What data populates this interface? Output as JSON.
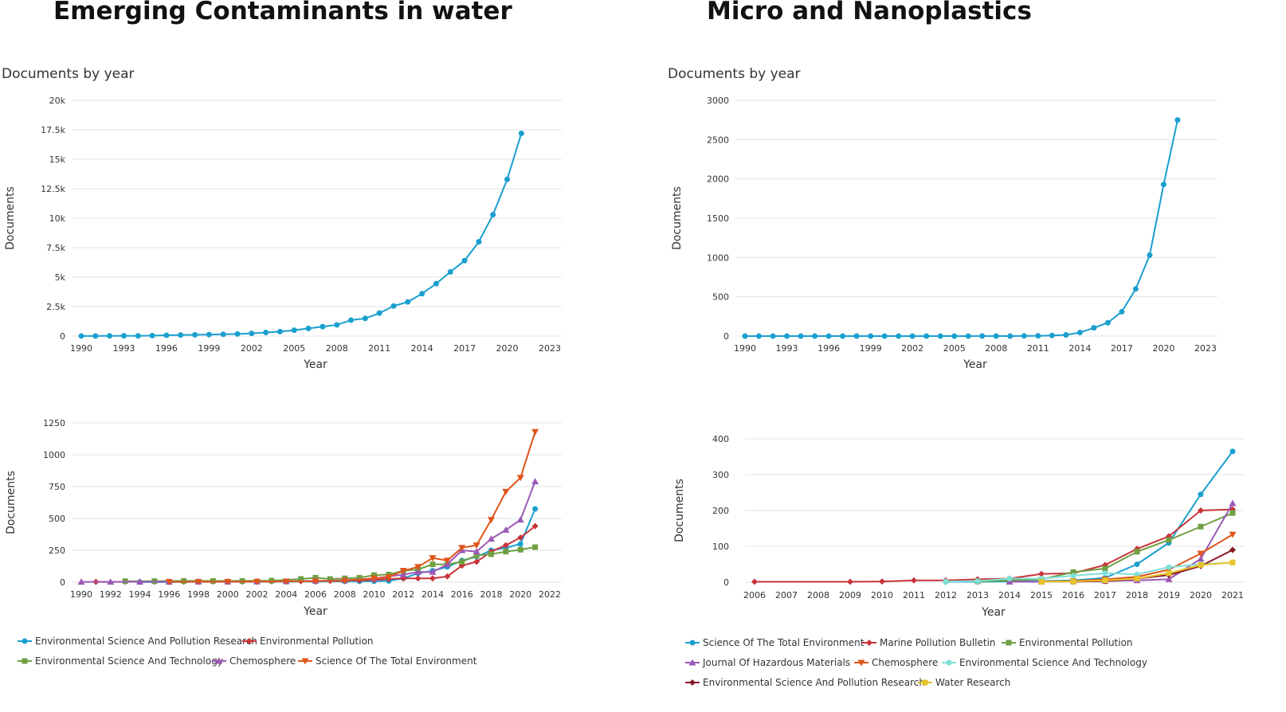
{
  "panels": {
    "left_title": "Emerging Contaminants in water",
    "right_title": "Micro and Nanoplastics",
    "left_subtitle": "Documents by year",
    "right_subtitle": "Documents by year"
  },
  "colors": {
    "main_line": "#1a9fcf",
    "grid": "#e3e3e3"
  },
  "chart_data": [
    {
      "type": "line",
      "title": "Documents by year",
      "xlabel": "Year",
      "ylabel": "Documents",
      "xlim": [
        1990,
        2023
      ],
      "ylim": [
        0,
        20000
      ],
      "xticks": [
        "1990",
        "1993",
        "1996",
        "1999",
        "2002",
        "2005",
        "2008",
        "2011",
        "2014",
        "2017",
        "2020",
        "2023"
      ],
      "yticks": [
        "0",
        "2.5k",
        "5k",
        "7.5k",
        "10k",
        "12.5k",
        "15k",
        "17.5k",
        "20k"
      ],
      "yticks_values": [
        0,
        2500,
        5000,
        7500,
        10000,
        12500,
        15000,
        17500,
        20000
      ],
      "grid": true,
      "series": [
        {
          "color": "#1a9fcf",
          "x": [
            1990,
            1991,
            1992,
            1993,
            1994,
            1995,
            1996,
            1997,
            1998,
            1999,
            2000,
            2001,
            2002,
            2003,
            2004,
            2005,
            2006,
            2007,
            2008,
            2009,
            2010,
            2011,
            2012,
            2013,
            2014,
            2015,
            2016,
            2017,
            2018,
            2019,
            2020,
            2021
          ],
          "values": [
            5,
            10,
            20,
            25,
            15,
            40,
            70,
            90,
            110,
            130,
            150,
            180,
            230,
            300,
            380,
            500,
            650,
            800,
            950,
            1350,
            1500,
            1950,
            2550,
            2900,
            3600,
            4450,
            5450,
            6400,
            8000,
            10300,
            13300,
            17200
          ]
        }
      ]
    },
    {
      "type": "line",
      "xlabel": "Year",
      "ylabel": "Documents",
      "xlim": [
        1990,
        2022
      ],
      "ylim": [
        0,
        1250
      ],
      "xticks": [
        "1990",
        "1992",
        "1994",
        "1996",
        "1998",
        "2000",
        "2002",
        "2004",
        "2006",
        "2008",
        "2010",
        "2012",
        "2014",
        "2016",
        "2018",
        "2020",
        "2022"
      ],
      "yticks": [
        "0",
        "250",
        "500",
        "750",
        "1000",
        "1250"
      ],
      "yticks_values": [
        0,
        250,
        500,
        750,
        1000,
        1250
      ],
      "grid": true,
      "legend": "bottom",
      "series": [
        {
          "name": "Environmental Science And Pollution Research",
          "color": "#1a9fcf",
          "marker": "circle",
          "x": [
            1994,
            1996,
            1998,
            2000,
            2002,
            2004,
            2006,
            2008,
            2009,
            2010,
            2011,
            2012,
            2013,
            2014,
            2015,
            2016,
            2017,
            2018,
            2019,
            2020,
            2021
          ],
          "values": [
            1,
            1,
            2,
            2,
            3,
            4,
            5,
            6,
            7,
            8,
            10,
            30,
            70,
            90,
            120,
            170,
            200,
            250,
            270,
            300,
            575
          ]
        },
        {
          "name": "Environmental Pollution",
          "color": "#c9343a",
          "marker": "diamond",
          "x": [
            1991,
            1993,
            1995,
            1997,
            1999,
            2001,
            2003,
            2005,
            2007,
            2008,
            2009,
            2010,
            2011,
            2012,
            2013,
            2014,
            2015,
            2016,
            2017,
            2018,
            2019,
            2020,
            2021
          ],
          "values": [
            2,
            3,
            4,
            4,
            5,
            5,
            6,
            8,
            10,
            12,
            15,
            18,
            25,
            30,
            30,
            30,
            45,
            130,
            160,
            240,
            290,
            350,
            440
          ]
        },
        {
          "name": "Environmental Science And Technology",
          "color": "#6fa043",
          "marker": "square",
          "x": [
            1993,
            1995,
            1997,
            1999,
            2001,
            2003,
            2005,
            2006,
            2007,
            2008,
            2009,
            2010,
            2011,
            2012,
            2013,
            2014,
            2015,
            2016,
            2017,
            2018,
            2019,
            2020,
            2021
          ],
          "values": [
            8,
            8,
            10,
            10,
            10,
            12,
            25,
            35,
            25,
            30,
            35,
            55,
            60,
            90,
            100,
            140,
            140,
            160,
            210,
            220,
            240,
            255,
            275
          ]
        },
        {
          "name": "Chemosphere",
          "color": "#9b59b6",
          "marker": "triangle",
          "x": [
            1990,
            1992,
            1994,
            1996,
            1998,
            2000,
            2002,
            2004,
            2006,
            2008,
            2010,
            2012,
            2013,
            2014,
            2015,
            2016,
            2017,
            2018,
            2019,
            2020,
            2021
          ],
          "values": [
            2,
            2,
            3,
            3,
            4,
            4,
            5,
            6,
            10,
            15,
            30,
            60,
            80,
            80,
            140,
            250,
            240,
            340,
            410,
            490,
            790
          ]
        },
        {
          "name": "Science Of The Total Environment",
          "color": "#e0541a",
          "marker": "triangle-down",
          "x": [
            1996,
            1998,
            2000,
            2002,
            2004,
            2006,
            2008,
            2010,
            2011,
            2012,
            2013,
            2014,
            2015,
            2016,
            2017,
            2018,
            2019,
            2020,
            2021
          ],
          "values": [
            3,
            3,
            4,
            5,
            6,
            8,
            12,
            30,
            40,
            90,
            120,
            190,
            170,
            270,
            290,
            490,
            710,
            820,
            1180
          ]
        }
      ]
    },
    {
      "type": "line",
      "title": "Documents by year",
      "xlabel": "Year",
      "ylabel": "Documents",
      "xlim": [
        1990,
        2023
      ],
      "ylim": [
        0,
        3000
      ],
      "xticks": [
        "1990",
        "1993",
        "1996",
        "1999",
        "2002",
        "2005",
        "2008",
        "2011",
        "2014",
        "2017",
        "2020",
        "2023"
      ],
      "yticks": [
        "0",
        "500",
        "1000",
        "1500",
        "2000",
        "2500",
        "3000"
      ],
      "yticks_values": [
        0,
        500,
        1000,
        1500,
        2000,
        2500,
        3000
      ],
      "grid": true,
      "series": [
        {
          "color": "#1a9fcf",
          "x": [
            1990,
            1991,
            1992,
            1993,
            1994,
            1995,
            1996,
            1997,
            1998,
            1999,
            2000,
            2001,
            2002,
            2003,
            2004,
            2005,
            2006,
            2007,
            2008,
            2009,
            2010,
            2011,
            2012,
            2013,
            2014,
            2015,
            2016,
            2017,
            2018,
            2019,
            2020,
            2021
          ],
          "values": [
            0,
            0,
            0,
            0,
            0,
            0,
            0,
            0,
            0,
            0,
            0,
            0,
            0,
            0,
            0,
            0,
            0,
            1,
            0,
            0,
            2,
            3,
            8,
            15,
            45,
            105,
            170,
            310,
            600,
            1030,
            1930,
            2750
          ]
        }
      ]
    },
    {
      "type": "line",
      "xlabel": "Year",
      "ylabel": "Documents",
      "categories": [
        "2006",
        "2007",
        "2008",
        "2009",
        "2010",
        "2011",
        "2012",
        "2013",
        "2014",
        "2015",
        "2016",
        "2017",
        "2018",
        "2019",
        "2020",
        "2021"
      ],
      "ylim": [
        0,
        400
      ],
      "yticks": [
        "0",
        "100",
        "200",
        "300",
        "400"
      ],
      "yticks_values": [
        0,
        100,
        200,
        300,
        400
      ],
      "grid": true,
      "legend": "bottom",
      "series": [
        {
          "name": "Science Of The Total Environment",
          "color": "#1a9fcf",
          "marker": "circle",
          "x": [
            2012,
            2013,
            2014,
            2015,
            2016,
            2017,
            2018,
            2019,
            2020,
            2021
          ],
          "values": [
            1,
            1,
            2,
            3,
            5,
            12,
            50,
            110,
            245,
            365
          ]
        },
        {
          "name": "Marine Pollution Bulletin",
          "color": "#c9343a",
          "marker": "diamond",
          "x": [
            2006,
            2009,
            2010,
            2011,
            2012,
            2013,
            2014,
            2015,
            2016,
            2017,
            2018,
            2019,
            2020,
            2021
          ],
          "values": [
            1,
            1,
            2,
            5,
            5,
            8,
            10,
            23,
            25,
            48,
            93,
            128,
            200,
            203
          ]
        },
        {
          "name": "Environmental Pollution",
          "color": "#6fa043",
          "marker": "square",
          "x": [
            2013,
            2014,
            2015,
            2016,
            2017,
            2018,
            2019,
            2020,
            2021
          ],
          "values": [
            2,
            5,
            8,
            28,
            38,
            85,
            118,
            155,
            193
          ]
        },
        {
          "name": "Journal Of Hazardous Materials",
          "color": "#9b59b6",
          "marker": "triangle",
          "x": [
            2014,
            2015,
            2016,
            2017,
            2018,
            2019,
            2020,
            2021
          ],
          "values": [
            1,
            1,
            2,
            3,
            5,
            8,
            65,
            220
          ]
        },
        {
          "name": "Chemosphere",
          "color": "#e0541a",
          "marker": "triangle-down",
          "x": [
            2015,
            2016,
            2017,
            2018,
            2019,
            2020,
            2021
          ],
          "values": [
            2,
            3,
            8,
            15,
            35,
            80,
            133
          ]
        },
        {
          "name": "Environmental Science And Technology",
          "color": "#7fe0d6",
          "marker": "circle",
          "x": [
            2012,
            2013,
            2014,
            2015,
            2016,
            2017,
            2018,
            2019,
            2020,
            2021
          ],
          "values": [
            2,
            3,
            10,
            10,
            18,
            25,
            22,
            42,
            50,
            55
          ]
        },
        {
          "name": "Environmental Science And Pollution Research",
          "color": "#8b1a2b",
          "marker": "diamond",
          "x": [
            2016,
            2017,
            2018,
            2019,
            2020,
            2021
          ],
          "values": [
            1,
            3,
            10,
            20,
            45,
            90
          ]
        },
        {
          "name": "Water Research",
          "color": "#e6c42a",
          "marker": "square",
          "x": [
            2015,
            2016,
            2017,
            2018,
            2019,
            2020,
            2021
          ],
          "values": [
            1,
            2,
            5,
            10,
            25,
            48,
            55
          ]
        }
      ]
    }
  ]
}
